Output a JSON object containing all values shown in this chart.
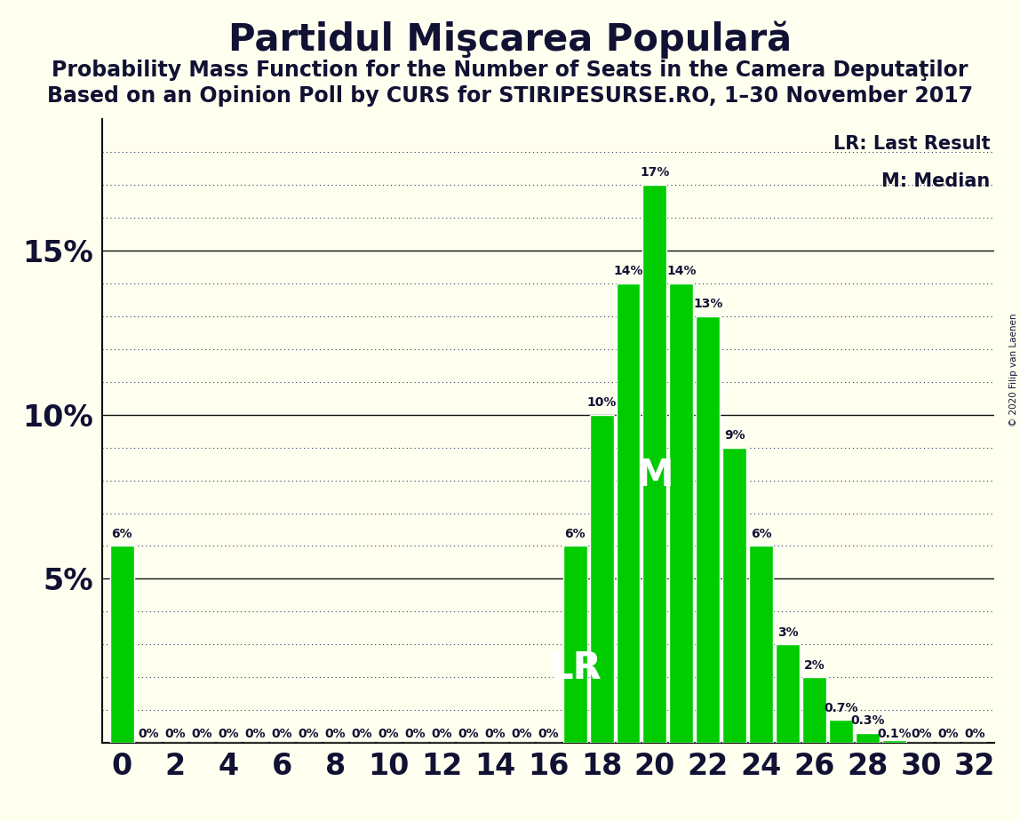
{
  "title": "Partidul Mişcarea Populară",
  "subtitle1": "Probability Mass Function for the Number of Seats in the Camera Deputaţilor",
  "subtitle2": "Based on an Opinion Poll by CURS for STIRIPESURSE.RO, 1–30 November 2017",
  "copyright": "© 2020 Filip van Laenen",
  "legend_lr": "LR: Last Result",
  "legend_m": "M: Median",
  "background_color": "#FFFFF0",
  "bar_color": "#00CC00",
  "seats": [
    0,
    1,
    2,
    3,
    4,
    5,
    6,
    7,
    8,
    9,
    10,
    11,
    12,
    13,
    14,
    15,
    16,
    17,
    18,
    19,
    20,
    21,
    22,
    23,
    24,
    25,
    26,
    27,
    28,
    29,
    30,
    31,
    32
  ],
  "probabilities": [
    0.06,
    0.0,
    0.0,
    0.0,
    0.0,
    0.0,
    0.0,
    0.0,
    0.0,
    0.0,
    0.0,
    0.0,
    0.0,
    0.0,
    0.0,
    0.0,
    0.0,
    0.06,
    0.1,
    0.14,
    0.17,
    0.14,
    0.13,
    0.09,
    0.06,
    0.03,
    0.02,
    0.007,
    0.003,
    0.001,
    0.0,
    0.0,
    0.0
  ],
  "labels": [
    "6%",
    "0%",
    "0%",
    "0%",
    "0%",
    "0%",
    "0%",
    "0%",
    "0%",
    "0%",
    "0%",
    "0%",
    "0%",
    "0%",
    "0%",
    "0%",
    "0%",
    "6%",
    "10%",
    "14%",
    "17%",
    "14%",
    "13%",
    "9%",
    "6%",
    "3%",
    "2%",
    "0.7%",
    "0.3%",
    "0.1%",
    "0%",
    "0%",
    "0%"
  ],
  "lr_seat": 17,
  "median_seat": 20,
  "ylim": [
    0,
    0.19
  ],
  "solid_yticks": [
    0.0,
    0.05,
    0.1,
    0.15
  ],
  "solid_ytick_labels": [
    "",
    "5%",
    "10%",
    "15%"
  ],
  "all_yticks": [
    0.01,
    0.02,
    0.03,
    0.04,
    0.05,
    0.06,
    0.07,
    0.08,
    0.09,
    0.1,
    0.11,
    0.12,
    0.13,
    0.14,
    0.15,
    0.16,
    0.17,
    0.18
  ],
  "grid_dot_color": "#333355",
  "grid_solid_color": "#111111",
  "text_color": "#111133",
  "title_fontsize": 30,
  "subtitle_fontsize": 17,
  "axis_fontsize": 24,
  "bar_label_fontsize": 10,
  "lr_m_fontsize": 30
}
